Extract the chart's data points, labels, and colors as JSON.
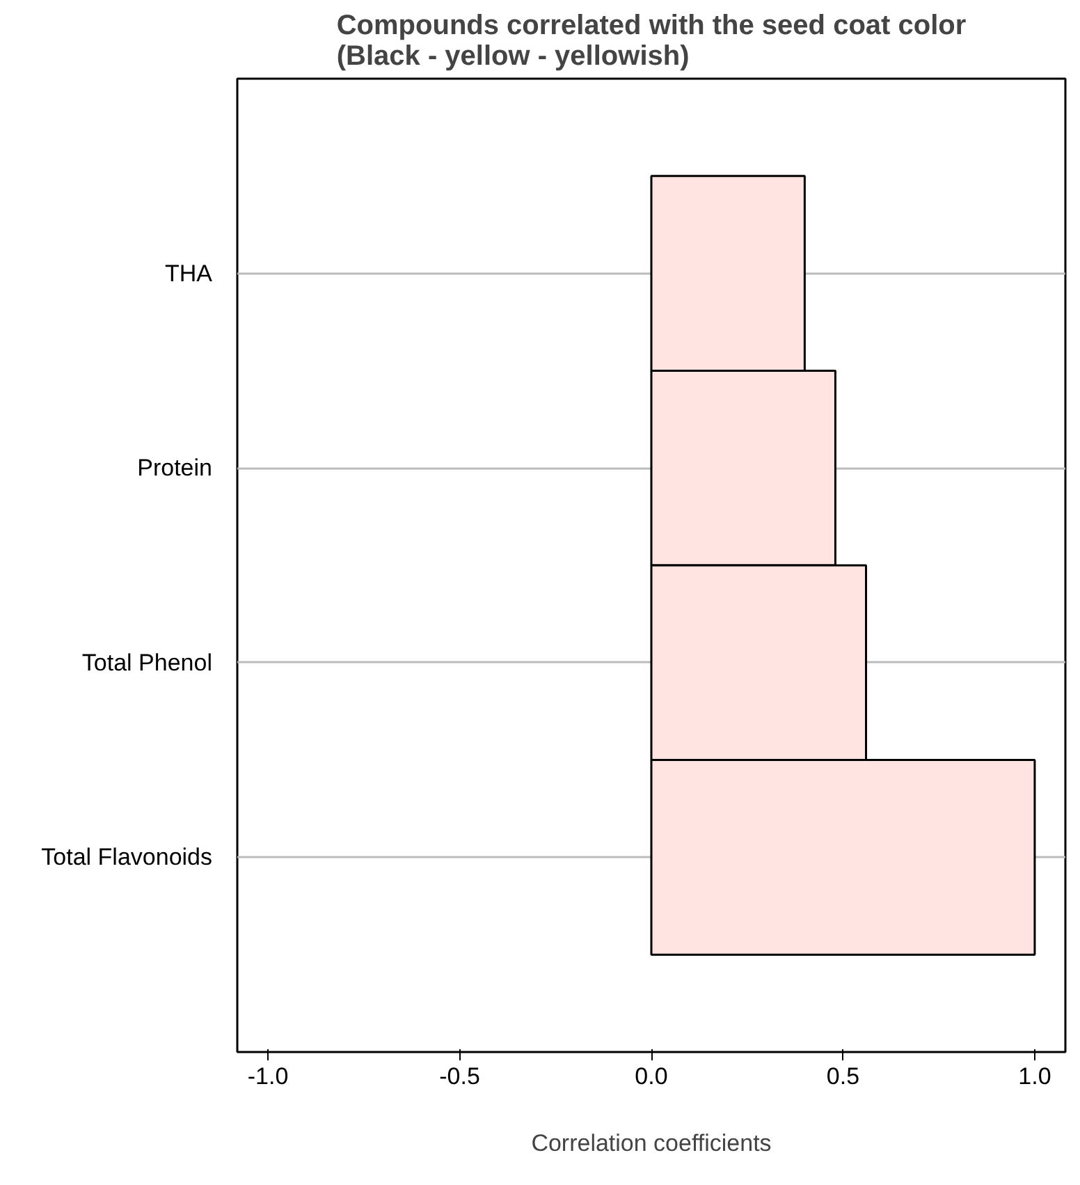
{
  "chart_data": {
    "type": "bar",
    "orientation": "horizontal",
    "title": "Compounds correlated with the seed coat color\n(Black - yellow - yellowish)",
    "xlabel": "Correlation coefficients",
    "categories": [
      "THA",
      "Protein",
      "Total Phenol",
      "Total Flavonoids"
    ],
    "values": [
      0.4,
      0.48,
      0.56,
      1.0
    ],
    "color": "#ffe4e1",
    "xlim": [
      -1.08,
      1.08
    ],
    "xticks": [
      {
        "value": -1,
        "label": "-1.0"
      },
      {
        "value": -0.5,
        "label": "-0.5"
      },
      {
        "value": 0,
        "label": "0.0"
      },
      {
        "value": 0.5,
        "label": "0.5"
      },
      {
        "value": 1,
        "label": "1.0"
      }
    ],
    "grid": "y"
  }
}
